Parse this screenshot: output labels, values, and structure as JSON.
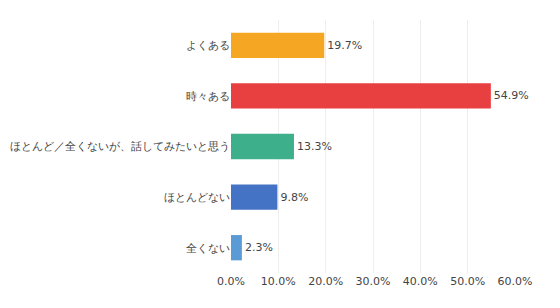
{
  "chart_data": {
    "type": "bar",
    "orientation": "horizontal",
    "categories": [
      "よくある",
      "時々ある",
      "ほとんど／全くないが、話してみたいと思う",
      "ほとんどない",
      "全くない"
    ],
    "values": [
      19.7,
      54.9,
      13.3,
      9.8,
      2.3
    ],
    "value_labels": [
      "19.7%",
      "54.9%",
      "13.3%",
      "9.8%",
      "2.3%"
    ],
    "data_labels": true,
    "colors": [
      "#F5A623",
      "#E84040",
      "#3DAF8A",
      "#4472C4",
      "#5B9BD5"
    ],
    "xlim": [
      0,
      60
    ],
    "xticks": [
      {
        "value": 0,
        "label": "0.0%"
      },
      {
        "value": 10,
        "label": "10.0%"
      },
      {
        "value": 20,
        "label": "20.0%"
      },
      {
        "value": 30,
        "label": "30.0%"
      },
      {
        "value": 40,
        "label": "40.0%"
      },
      {
        "value": 50,
        "label": "50.0%"
      },
      {
        "value": 60,
        "label": "60.0%"
      }
    ],
    "grid": true
  }
}
